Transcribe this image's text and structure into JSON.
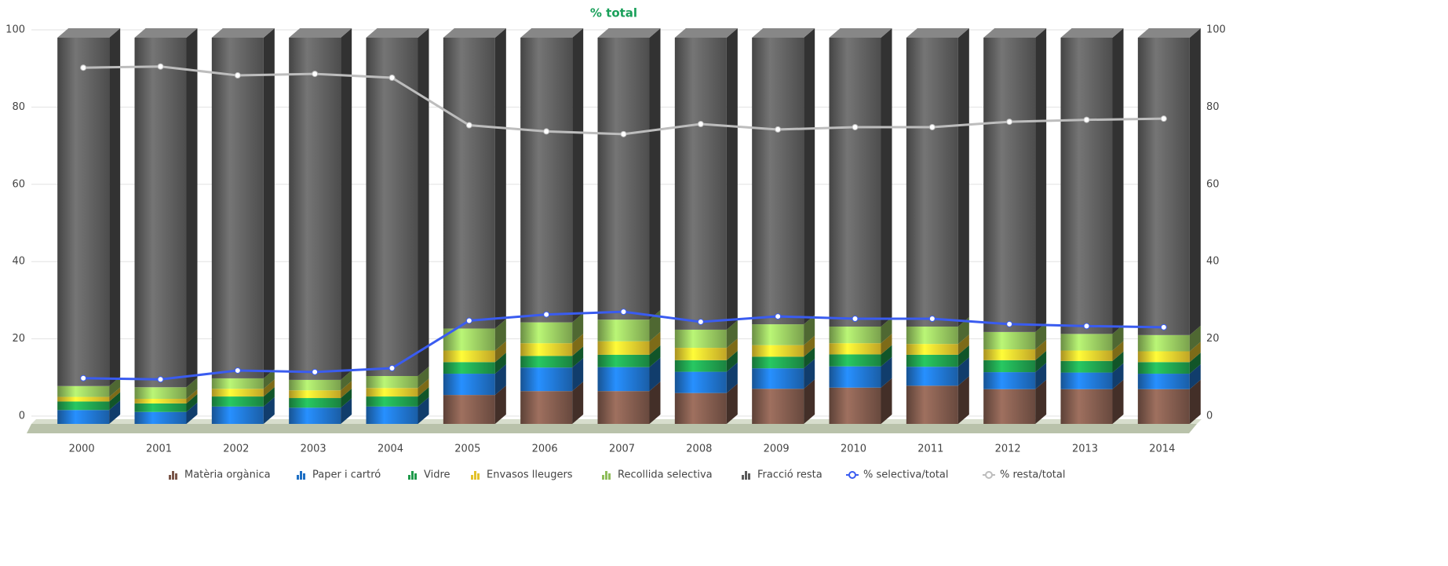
{
  "chart_data": {
    "type": "bar",
    "subtitle": "% total",
    "categories": [
      "2000",
      "2001",
      "2002",
      "2003",
      "2004",
      "2005",
      "2006",
      "2007",
      "2008",
      "2009",
      "2010",
      "2011",
      "2012",
      "2013",
      "2014"
    ],
    "ylim": [
      0,
      100
    ],
    "yticks": [
      0,
      20,
      40,
      60,
      80,
      100
    ],
    "y2lim": [
      0,
      100
    ],
    "y2ticks": [
      0,
      20,
      40,
      60,
      80,
      100
    ],
    "grid": true,
    "stacked": true,
    "legend": "bottom",
    "series": [
      {
        "name": "Matèria orgànica",
        "type": "bar",
        "color": "#7a5649",
        "values": [
          0,
          0,
          0,
          0,
          0,
          7.5,
          8.5,
          8.5,
          8.0,
          9.1,
          9.4,
          9.9,
          9.0,
          9.0,
          9.0
        ]
      },
      {
        "name": "Paper i cartró",
        "type": "bar",
        "color": "#1e6fc4",
        "values": [
          3.6,
          3.1,
          4.5,
          4.2,
          4.5,
          5.5,
          6.1,
          6.2,
          5.5,
          5.3,
          5.5,
          4.9,
          4.4,
          4.3,
          4.0
        ]
      },
      {
        "name": "Vidre",
        "type": "bar",
        "color": "#1f9a4b",
        "values": [
          2.2,
          2.2,
          2.6,
          2.5,
          2.6,
          3.0,
          3.0,
          3.2,
          3.0,
          3.0,
          3.1,
          3.1,
          3.1,
          3.0,
          3.0
        ]
      },
      {
        "name": "Envasos lleugers",
        "type": "bar",
        "color": "#e3c22c",
        "values": [
          1.2,
          1.2,
          2.0,
          2.0,
          2.2,
          3.0,
          3.3,
          3.5,
          3.2,
          3.0,
          2.9,
          2.8,
          2.8,
          2.7,
          2.8
        ]
      },
      {
        "name": "Recollida selectiva",
        "type": "bar",
        "color": "#8fbd5b",
        "values": [
          2.8,
          3.0,
          2.7,
          2.7,
          3.1,
          5.7,
          5.4,
          5.6,
          4.7,
          5.4,
          4.3,
          4.5,
          4.5,
          4.3,
          4.2
        ]
      },
      {
        "name": "Fracció resta",
        "type": "bar",
        "color": "#5a5a5a",
        "values": [
          90.2,
          90.5,
          88.2,
          88.6,
          87.6,
          75.3,
          73.7,
          73.0,
          75.6,
          74.2,
          74.8,
          74.8,
          76.2,
          76.7,
          77.0
        ]
      },
      {
        "name": "% selectiva/total",
        "type": "line",
        "axis": "y2",
        "color": "#3a5cf0",
        "values": [
          9.8,
          9.5,
          11.8,
          11.4,
          12.4,
          24.7,
          26.3,
          27.0,
          24.4,
          25.8,
          25.2,
          25.2,
          23.8,
          23.3,
          23.0
        ]
      },
      {
        "name": "% resta/total",
        "type": "line",
        "axis": "y2",
        "color": "#bdbdbd",
        "values": [
          90.2,
          90.5,
          88.2,
          88.6,
          87.6,
          75.3,
          73.7,
          73.0,
          75.6,
          74.2,
          74.8,
          74.8,
          76.2,
          76.7,
          77.0
        ]
      }
    ]
  }
}
